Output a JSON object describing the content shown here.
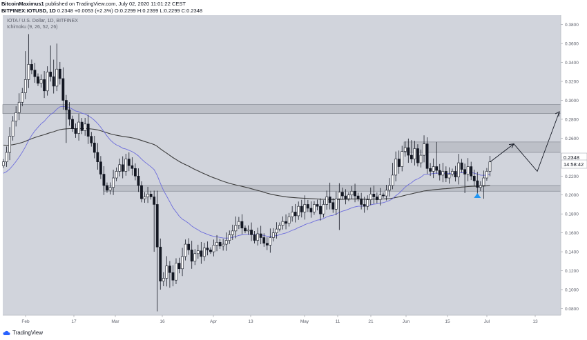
{
  "header": {
    "author": "BitcoinMaximus1",
    "published": "published on TradingView.com, July 02, 2020 11:01:22 CEST",
    "symbol": "BITFINEX:IOTUSD, 1D",
    "last": "0.2348",
    "change": "+0.0053 (+2.3%)",
    "ohlc_label": "O:0.2299 H:0.2399 L:0.2299 C:0.2348"
  },
  "legend": {
    "title": "IOTA / U.S. Dollar, 1D, BITFINEX",
    "indicator": "Ichimoku (9, 26, 52, 26)"
  },
  "price_tags": {
    "current": "0.2348",
    "countdown": "14:58:42"
  },
  "footer": {
    "brand": "TradingView"
  },
  "colors": {
    "background": "#d1d4dc",
    "candle_up": "#ffffff",
    "candle_down": "#131722",
    "long_ma": "#3c3c3c",
    "short_ma": "#6c6cdc",
    "zone_fill": "#b5b9c2",
    "arrow_up": "#2196f3"
  },
  "chart_data": {
    "type": "candlestick",
    "title": "IOTA / U.S. Dollar, 1D, BITFINEX",
    "y_ticks": [
      "0.3800",
      "0.3600",
      "0.3400",
      "0.3200",
      "0.3000",
      "0.2800",
      "0.2600",
      "0.2400",
      "0.2200",
      "0.2000",
      "0.1800",
      "0.1600",
      "0.1400",
      "0.1200",
      "0.1000",
      "0.0800"
    ],
    "x_ticks": [
      "Feb",
      "17",
      "Mar",
      "16",
      "Apr",
      "13",
      "May",
      "11",
      "21",
      "Jun",
      "15",
      "Jul",
      "13"
    ],
    "ylim": [
      0.073,
      0.39
    ],
    "grid": false,
    "zones": [
      {
        "name": "resistance",
        "low": 0.286,
        "high": 0.2955
      },
      {
        "name": "range-top",
        "low": 0.245,
        "high": 0.256
      },
      {
        "name": "support",
        "low": 0.204,
        "high": 0.21
      }
    ],
    "projection": [
      "0.2348",
      "0.2540",
      "0.2250",
      "0.2880"
    ],
    "closes": [
      0.235,
      0.245,
      0.262,
      0.278,
      0.287,
      0.298,
      0.308,
      0.322,
      0.338,
      0.332,
      0.325,
      0.318,
      0.322,
      0.31,
      0.33,
      0.325,
      0.315,
      0.333,
      0.323,
      0.3,
      0.29,
      0.28,
      0.27,
      0.265,
      0.277,
      0.268,
      0.275,
      0.262,
      0.255,
      0.245,
      0.235,
      0.222,
      0.21,
      0.205,
      0.208,
      0.218,
      0.225,
      0.232,
      0.225,
      0.238,
      0.231,
      0.228,
      0.22,
      0.21,
      0.196,
      0.198,
      0.201,
      0.198,
      0.19,
      0.145,
      0.109,
      0.112,
      0.125,
      0.118,
      0.11,
      0.128,
      0.122,
      0.135,
      0.148,
      0.142,
      0.13,
      0.138,
      0.141,
      0.135,
      0.144,
      0.142,
      0.14,
      0.147,
      0.15,
      0.146,
      0.148,
      0.152,
      0.158,
      0.162,
      0.168,
      0.172,
      0.165,
      0.162,
      0.163,
      0.158,
      0.152,
      0.159,
      0.155,
      0.149,
      0.147,
      0.155,
      0.16,
      0.164,
      0.168,
      0.172,
      0.17,
      0.177,
      0.182,
      0.178,
      0.188,
      0.182,
      0.19,
      0.186,
      0.182,
      0.19,
      0.188,
      0.18,
      0.19,
      0.198,
      0.192,
      0.185,
      0.196,
      0.203,
      0.199,
      0.196,
      0.2,
      0.204,
      0.199,
      0.196,
      0.19,
      0.188,
      0.195,
      0.201,
      0.198,
      0.195,
      0.2,
      0.199,
      0.205,
      0.21,
      0.221,
      0.238,
      0.23,
      0.246,
      0.25,
      0.242,
      0.238,
      0.249,
      0.234,
      0.242,
      0.254,
      0.228,
      0.225,
      0.23,
      0.226,
      0.221,
      0.225,
      0.218,
      0.222,
      0.225,
      0.219,
      0.234,
      0.227,
      0.222,
      0.23,
      0.22,
      0.215,
      0.208,
      0.21,
      0.218,
      0.225,
      0.235
    ]
  }
}
